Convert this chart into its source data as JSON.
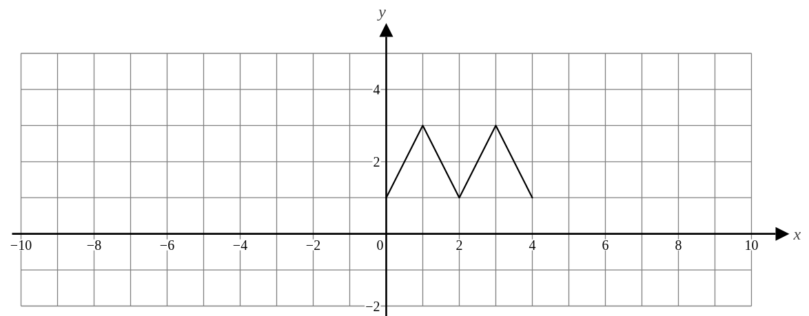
{
  "chart_data": {
    "type": "line",
    "xlabel": "x",
    "ylabel": "y",
    "x": [
      0,
      1,
      2,
      3,
      4
    ],
    "series": [
      {
        "color": "#000000",
        "values": [
          1,
          3,
          1,
          3,
          1
        ]
      }
    ],
    "xlim": [
      -10,
      10
    ],
    "ylim": [
      -2,
      5
    ],
    "xticks": [
      {
        "value": -10,
        "label": "−10"
      },
      {
        "value": -9,
        "label": null
      },
      {
        "value": -8,
        "label": "−8"
      },
      {
        "value": -7,
        "label": null
      },
      {
        "value": -6,
        "label": "−6"
      },
      {
        "value": -5,
        "label": null
      },
      {
        "value": -4,
        "label": "−4"
      },
      {
        "value": -3,
        "label": null
      },
      {
        "value": -2,
        "label": "−2"
      },
      {
        "value": -1,
        "label": null
      },
      0,
      {
        "value": 1,
        "label": null
      },
      2,
      {
        "value": 3,
        "label": null
      },
      4,
      {
        "value": 5,
        "label": null
      },
      6,
      {
        "value": 7,
        "label": null
      },
      8,
      {
        "value": 9,
        "label": null
      },
      10
    ],
    "yticks": [
      {
        "value": -2,
        "label": "−2"
      },
      {
        "value": -1,
        "label": null
      },
      {
        "value": 0,
        "label": null
      },
      {
        "value": 1,
        "label": null
      },
      2,
      {
        "value": 3,
        "label": null
      },
      4,
      {
        "value": 5,
        "label": null
      }
    ],
    "grid": true,
    "line_style": "solid"
  }
}
